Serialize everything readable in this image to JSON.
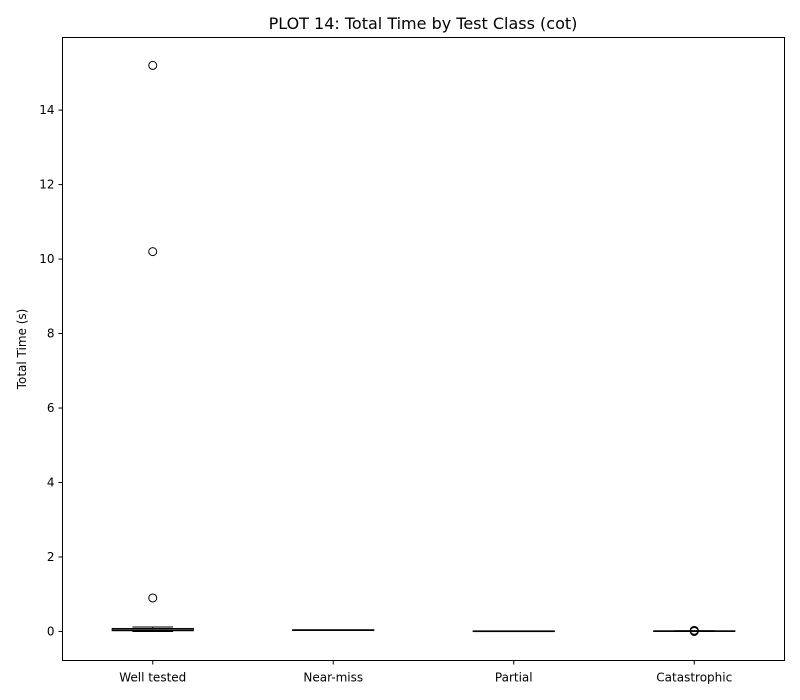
{
  "chart_data": {
    "type": "box",
    "title": "PLOT 14: Total Time by Test Class (cot)",
    "xlabel": "",
    "ylabel": "Total Time (s)",
    "ylim": [
      -0.78,
      15.95
    ],
    "yticks": [
      0,
      2,
      4,
      6,
      8,
      10,
      12,
      14
    ],
    "grid": false,
    "categories": [
      "Well tested",
      "Near-miss",
      "Partial",
      "Catastrophic"
    ],
    "boxes": [
      {
        "category": "Well tested",
        "whisker_low": 0.0,
        "q1": 0.02,
        "median": 0.04,
        "q3": 0.08,
        "whisker_high": 0.12,
        "outliers": [
          0.9,
          10.2,
          15.2
        ]
      },
      {
        "category": "Near-miss",
        "whisker_low": 0.04,
        "q1": 0.04,
        "median": 0.04,
        "q3": 0.04,
        "whisker_high": 0.04,
        "outliers": []
      },
      {
        "category": "Partial",
        "whisker_low": 0.01,
        "q1": 0.01,
        "median": 0.01,
        "q3": 0.01,
        "whisker_high": 0.01,
        "outliers": []
      },
      {
        "category": "Catastrophic",
        "whisker_low": 0.0,
        "q1": 0.01,
        "median": 0.01,
        "q3": 0.015,
        "whisker_high": 0.02,
        "outliers": [
          0.0,
          0.02,
          0.03
        ]
      }
    ]
  }
}
